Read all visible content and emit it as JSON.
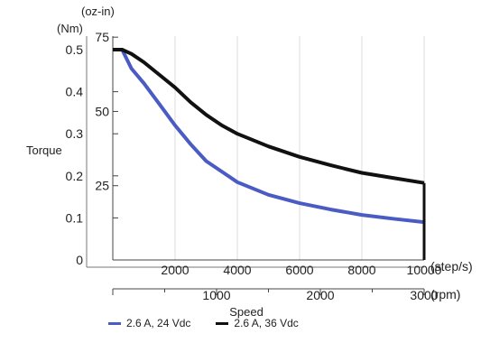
{
  "chart_data": {
    "type": "line",
    "y_axis_label": "Torque",
    "y_unit_nm": "(Nm)",
    "y_unit_ozin": "(oz-in)",
    "x_axis_label": "Speed",
    "x_unit_steps": "(step/s)",
    "x_unit_rpm": "(rpm)",
    "y_nm_ticks": [
      "0",
      "0.1",
      "0.2",
      "0.3",
      "0.4",
      "0.5"
    ],
    "y_ozin_ticks": [
      "25",
      "50",
      "75"
    ],
    "x_steps_ticks": [
      "2000",
      "4000",
      "6000",
      "8000",
      "10000"
    ],
    "x_rpm_ticks": [
      "1000",
      "2000",
      "3000"
    ],
    "xlim": [
      0,
      10000
    ],
    "ylim": [
      0,
      0.5
    ],
    "grid": true,
    "legend_position": "bottom",
    "series": [
      {
        "name": "2.6 A, 24 Vdc",
        "color": "#4a5bc4",
        "x": [
          0,
          300,
          600,
          1000,
          1500,
          2000,
          2500,
          3000,
          3500,
          4000,
          5000,
          6000,
          7000,
          8000,
          9000,
          10000
        ],
        "y": [
          0.5,
          0.5,
          0.455,
          0.42,
          0.37,
          0.32,
          0.275,
          0.235,
          0.21,
          0.185,
          0.155,
          0.135,
          0.12,
          0.107,
          0.098,
          0.09
        ]
      },
      {
        "name": "2.6 A, 36 Vdc",
        "color": "#111111",
        "x": [
          0,
          300,
          600,
          1000,
          1500,
          2000,
          2500,
          3000,
          3500,
          4000,
          5000,
          6000,
          7000,
          8000,
          9000,
          10000
        ],
        "y": [
          0.5,
          0.5,
          0.49,
          0.47,
          0.44,
          0.41,
          0.375,
          0.345,
          0.32,
          0.3,
          0.27,
          0.245,
          0.225,
          0.207,
          0.195,
          0.183
        ]
      }
    ]
  }
}
